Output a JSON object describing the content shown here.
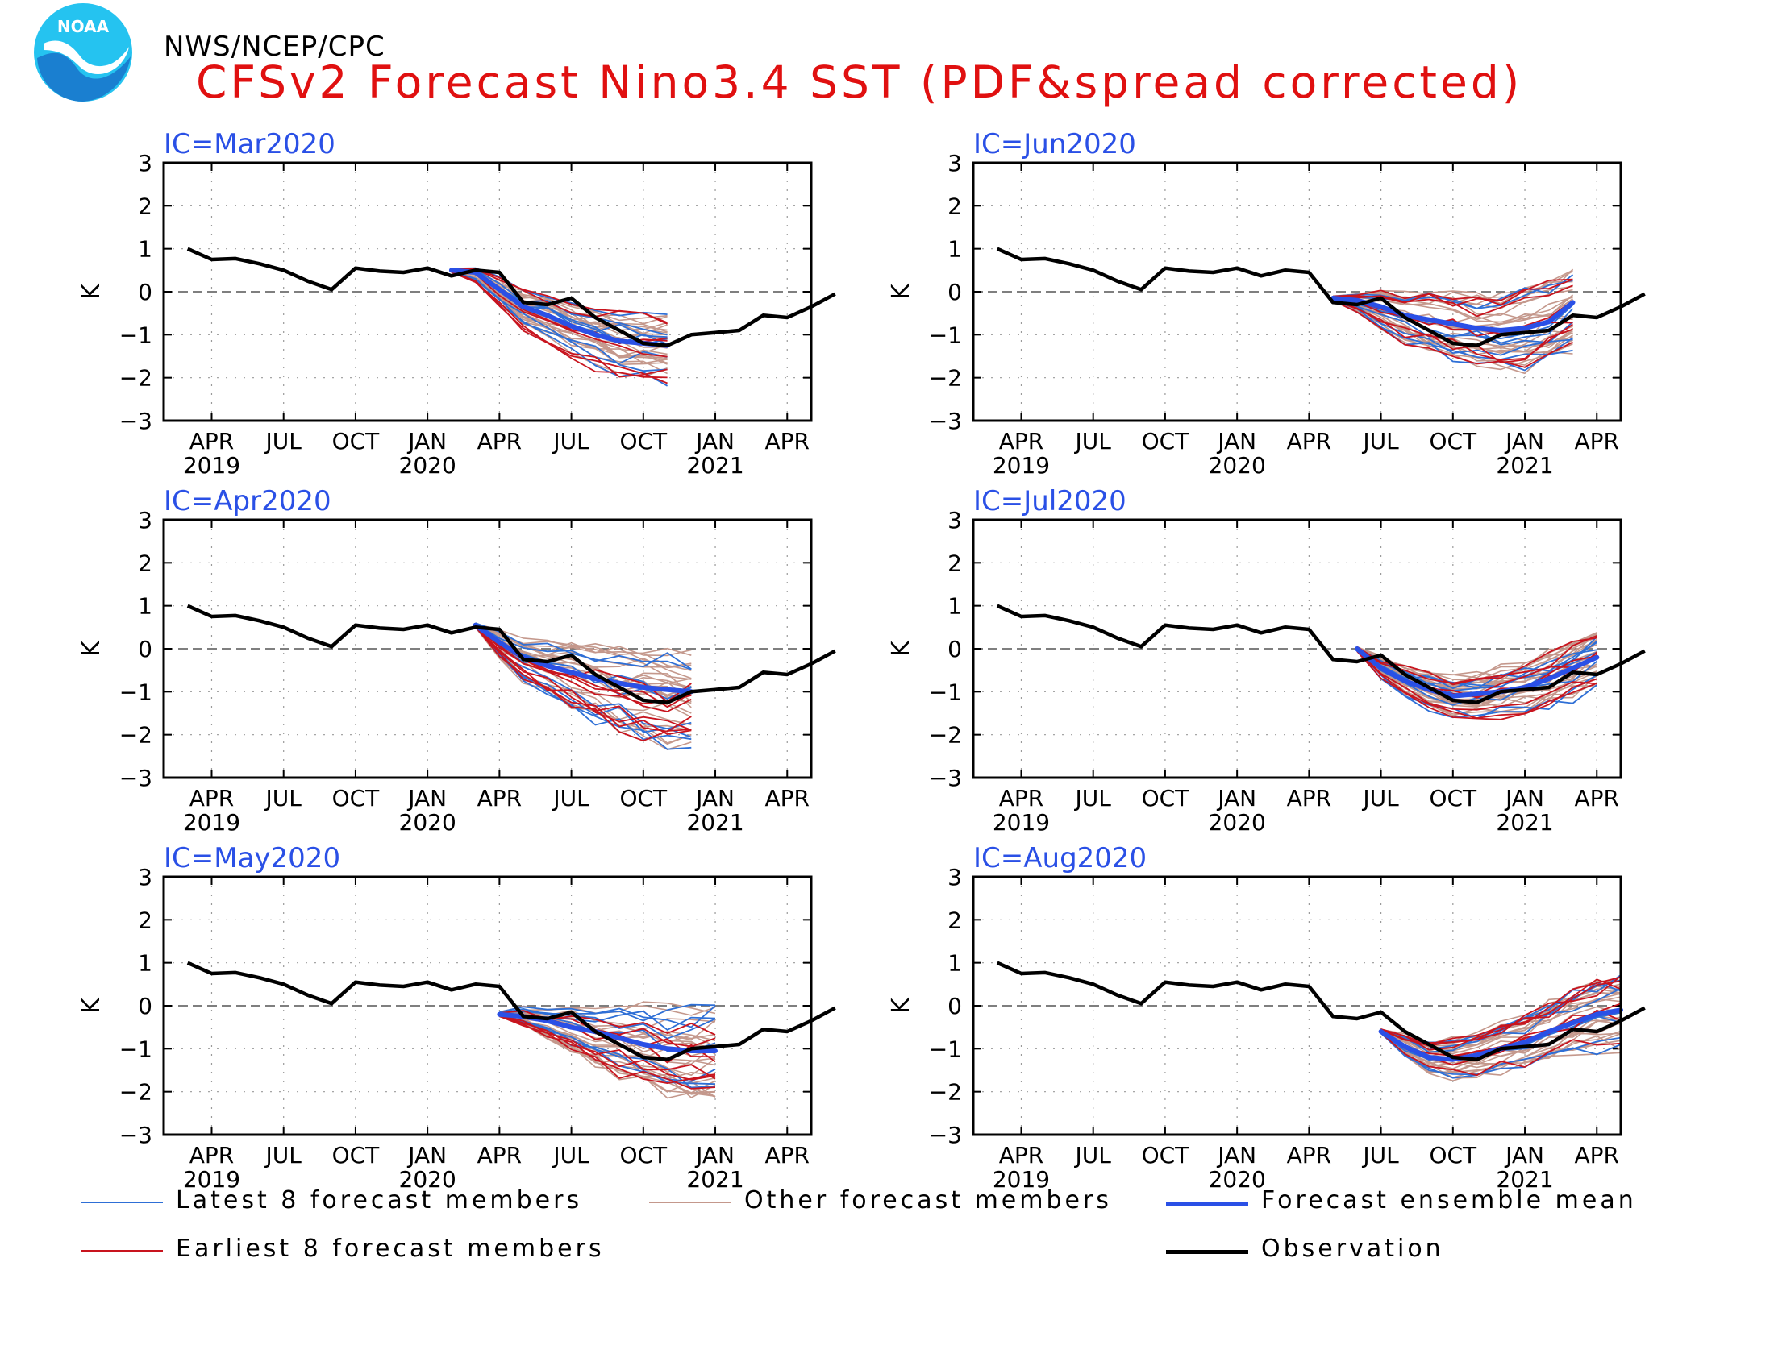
{
  "header": {
    "org": "NWS/NCEP/CPC",
    "title": "CFSv2 Forecast Nino3.4 SST (PDF&spread corrected)",
    "logo_text": "NOAA"
  },
  "colors": {
    "latest": "#2e6fd6",
    "earliest": "#c8141e",
    "other": "#c4988c",
    "mean": "#2a50e6",
    "observation": "#000000",
    "title": "#e01010",
    "panel_title": "#2a50e6"
  },
  "legend": [
    {
      "key": "latest",
      "label": "Latest 8 forecast members"
    },
    {
      "key": "other",
      "label": "Other forecast members"
    },
    {
      "key": "mean",
      "label": "Forecast ensemble mean"
    },
    {
      "key": "earliest",
      "label": "Earliest 8 forecast members"
    },
    {
      "key": "observation",
      "label": "Observation"
    }
  ],
  "chart_data": [
    {
      "type": "line",
      "title": "IC=Mar2020",
      "ylabel": "K",
      "ylim": [
        -3,
        3
      ],
      "yticks": [
        "3",
        "2",
        "1",
        "0",
        "−1",
        "−2",
        "−3"
      ],
      "xticks": [
        {
          "month": "APR",
          "year": "2019"
        },
        {
          "month": "JUL",
          "year": ""
        },
        {
          "month": "OCT",
          "year": ""
        },
        {
          "month": "JAN",
          "year": "2020"
        },
        {
          "month": "APR",
          "year": ""
        },
        {
          "month": "JUL",
          "year": ""
        },
        {
          "month": "OCT",
          "year": ""
        },
        {
          "month": "JAN",
          "year": "2021"
        },
        {
          "month": "APR",
          "year": ""
        }
      ],
      "ic_month": "2020-03",
      "observation": {
        "x_start": "2019-03",
        "y": [
          1.0,
          0.75,
          0.77,
          0.65,
          0.5,
          0.25,
          0.05,
          0.55,
          0.48,
          0.45,
          0.55,
          0.37,
          0.5,
          0.45,
          -0.25,
          -0.3,
          -0.15,
          -0.6,
          -0.9,
          -1.2,
          -1.25,
          -1.0,
          -0.95,
          -0.9,
          -0.55,
          -0.6,
          -0.35,
          -0.05
        ]
      },
      "mean": {
        "x_start": "2020-02",
        "y": [
          0.5,
          0.45,
          0.05,
          -0.35,
          -0.55,
          -0.8,
          -1.0,
          -1.15,
          -1.2,
          -1.25
        ]
      },
      "spread": {
        "x_start": "2020-02",
        "center": [
          0.5,
          0.4,
          0.0,
          -0.4,
          -0.6,
          -0.85,
          -1.05,
          -1.2,
          -1.25,
          -1.3
        ],
        "width": [
          0.05,
          0.18,
          0.32,
          0.45,
          0.55,
          0.62,
          0.7,
          0.75,
          0.8,
          0.8
        ]
      }
    },
    {
      "type": "line",
      "title": "IC=Jun2020",
      "ylabel": "K",
      "ylim": [
        -3,
        3
      ],
      "yticks": [
        "3",
        "2",
        "1",
        "0",
        "−1",
        "−2",
        "−3"
      ],
      "xticks": [
        {
          "month": "APR",
          "year": "2019"
        },
        {
          "month": "JUL",
          "year": ""
        },
        {
          "month": "OCT",
          "year": ""
        },
        {
          "month": "JAN",
          "year": "2020"
        },
        {
          "month": "APR",
          "year": ""
        },
        {
          "month": "JUL",
          "year": ""
        },
        {
          "month": "OCT",
          "year": ""
        },
        {
          "month": "JAN",
          "year": "2021"
        },
        {
          "month": "APR",
          "year": ""
        }
      ],
      "ic_month": "2020-06",
      "observation": {
        "x_start": "2019-03",
        "y": [
          1.0,
          0.75,
          0.77,
          0.65,
          0.5,
          0.25,
          0.05,
          0.55,
          0.48,
          0.45,
          0.55,
          0.37,
          0.5,
          0.45,
          -0.25,
          -0.3,
          -0.15,
          -0.6,
          -0.9,
          -1.2,
          -1.25,
          -1.0,
          -0.95,
          -0.9,
          -0.55,
          -0.6,
          -0.35,
          -0.05
        ]
      },
      "mean": {
        "x_start": "2020-05",
        "y": [
          -0.15,
          -0.2,
          -0.35,
          -0.55,
          -0.65,
          -0.75,
          -0.85,
          -0.9,
          -0.85,
          -0.7,
          -0.25
        ]
      },
      "spread": {
        "x_start": "2020-05",
        "center": [
          -0.15,
          -0.25,
          -0.4,
          -0.6,
          -0.7,
          -0.8,
          -0.9,
          -0.95,
          -0.85,
          -0.7,
          -0.4
        ],
        "width": [
          0.05,
          0.2,
          0.4,
          0.55,
          0.65,
          0.7,
          0.75,
          0.8,
          0.85,
          0.85,
          0.85
        ]
      }
    },
    {
      "type": "line",
      "title": "IC=Apr2020",
      "ylabel": "K",
      "ylim": [
        -3,
        3
      ],
      "yticks": [
        "3",
        "2",
        "1",
        "0",
        "−1",
        "−2",
        "−3"
      ],
      "xticks": [
        {
          "month": "APR",
          "year": "2019"
        },
        {
          "month": "JUL",
          "year": ""
        },
        {
          "month": "OCT",
          "year": ""
        },
        {
          "month": "JAN",
          "year": "2020"
        },
        {
          "month": "APR",
          "year": ""
        },
        {
          "month": "JUL",
          "year": ""
        },
        {
          "month": "OCT",
          "year": ""
        },
        {
          "month": "JAN",
          "year": "2021"
        },
        {
          "month": "APR",
          "year": ""
        }
      ],
      "ic_month": "2020-04",
      "observation": {
        "x_start": "2019-03",
        "y": [
          1.0,
          0.75,
          0.77,
          0.65,
          0.5,
          0.25,
          0.05,
          0.55,
          0.48,
          0.45,
          0.55,
          0.37,
          0.5,
          0.45,
          -0.25,
          -0.3,
          -0.15,
          -0.6,
          -0.9,
          -1.2,
          -1.25,
          -1.0,
          -0.95,
          -0.9,
          -0.55,
          -0.6,
          -0.35,
          -0.05
        ]
      },
      "mean": {
        "x_start": "2020-03",
        "y": [
          0.55,
          0.15,
          -0.2,
          -0.4,
          -0.55,
          -0.7,
          -0.8,
          -0.9,
          -0.95,
          -1.0
        ]
      },
      "spread": {
        "x_start": "2020-03",
        "center": [
          0.55,
          0.1,
          -0.25,
          -0.45,
          -0.6,
          -0.75,
          -0.9,
          -1.0,
          -1.1,
          -1.15
        ],
        "width": [
          0.05,
          0.3,
          0.45,
          0.6,
          0.75,
          0.85,
          0.95,
          1.0,
          1.05,
          1.05
        ]
      }
    },
    {
      "type": "line",
      "title": "IC=Jul2020",
      "ylabel": "K",
      "ylim": [
        -3,
        3
      ],
      "yticks": [
        "3",
        "2",
        "1",
        "0",
        "−1",
        "−2",
        "−3"
      ],
      "xticks": [
        {
          "month": "APR",
          "year": "2019"
        },
        {
          "month": "JUL",
          "year": ""
        },
        {
          "month": "OCT",
          "year": ""
        },
        {
          "month": "JAN",
          "year": "2020"
        },
        {
          "month": "APR",
          "year": ""
        },
        {
          "month": "JUL",
          "year": ""
        },
        {
          "month": "OCT",
          "year": ""
        },
        {
          "month": "JAN",
          "year": "2021"
        },
        {
          "month": "APR",
          "year": ""
        }
      ],
      "ic_month": "2020-07",
      "observation": {
        "x_start": "2019-03",
        "y": [
          1.0,
          0.75,
          0.77,
          0.65,
          0.5,
          0.25,
          0.05,
          0.55,
          0.48,
          0.45,
          0.55,
          0.37,
          0.5,
          0.45,
          -0.25,
          -0.3,
          -0.15,
          -0.6,
          -0.9,
          -1.2,
          -1.25,
          -1.0,
          -0.95,
          -0.9,
          -0.55,
          -0.6,
          -0.35,
          -0.05
        ]
      },
      "mean": {
        "x_start": "2020-06",
        "y": [
          0.0,
          -0.45,
          -0.75,
          -0.95,
          -1.1,
          -1.05,
          -1.0,
          -0.9,
          -0.7,
          -0.45,
          -0.2
        ]
      },
      "spread": {
        "x_start": "2020-06",
        "center": [
          0.0,
          -0.45,
          -0.75,
          -0.95,
          -1.1,
          -1.1,
          -1.0,
          -0.9,
          -0.7,
          -0.45,
          -0.2
        ],
        "width": [
          0.05,
          0.25,
          0.35,
          0.45,
          0.5,
          0.55,
          0.6,
          0.65,
          0.7,
          0.75,
          0.75
        ]
      }
    },
    {
      "type": "line",
      "title": "IC=May2020",
      "ylabel": "K",
      "ylim": [
        -3,
        3
      ],
      "yticks": [
        "3",
        "2",
        "1",
        "0",
        "−1",
        "−2",
        "−3"
      ],
      "xticks": [
        {
          "month": "APR",
          "year": "2019"
        },
        {
          "month": "JUL",
          "year": ""
        },
        {
          "month": "OCT",
          "year": ""
        },
        {
          "month": "JAN",
          "year": "2020"
        },
        {
          "month": "APR",
          "year": ""
        },
        {
          "month": "JUL",
          "year": ""
        },
        {
          "month": "OCT",
          "year": ""
        },
        {
          "month": "JAN",
          "year": "2021"
        },
        {
          "month": "APR",
          "year": ""
        }
      ],
      "ic_month": "2020-05",
      "observation": {
        "x_start": "2019-03",
        "y": [
          1.0,
          0.75,
          0.77,
          0.65,
          0.5,
          0.25,
          0.05,
          0.55,
          0.48,
          0.45,
          0.55,
          0.37,
          0.5,
          0.45,
          -0.25,
          -0.3,
          -0.15,
          -0.6,
          -0.9,
          -1.2,
          -1.25,
          -1.0,
          -0.95,
          -0.9,
          -0.55,
          -0.6,
          -0.35,
          -0.05
        ]
      },
      "mean": {
        "x_start": "2020-04",
        "y": [
          -0.2,
          -0.25,
          -0.35,
          -0.5,
          -0.6,
          -0.75,
          -0.9,
          -1.0,
          -1.05,
          -1.05
        ]
      },
      "spread": {
        "x_start": "2020-04",
        "center": [
          -0.2,
          -0.25,
          -0.4,
          -0.55,
          -0.7,
          -0.85,
          -0.95,
          -1.05,
          -1.1,
          -1.05
        ],
        "width": [
          0.05,
          0.2,
          0.35,
          0.5,
          0.65,
          0.75,
          0.85,
          0.95,
          1.0,
          1.0
        ]
      }
    },
    {
      "type": "line",
      "title": "IC=Aug2020",
      "ylabel": "K",
      "ylim": [
        -3,
        3
      ],
      "yticks": [
        "3",
        "2",
        "1",
        "0",
        "−1",
        "−2",
        "−3"
      ],
      "xticks": [
        {
          "month": "APR",
          "year": "2019"
        },
        {
          "month": "JUL",
          "year": ""
        },
        {
          "month": "OCT",
          "year": ""
        },
        {
          "month": "JAN",
          "year": "2020"
        },
        {
          "month": "APR",
          "year": ""
        },
        {
          "month": "JUL",
          "year": ""
        },
        {
          "month": "OCT",
          "year": ""
        },
        {
          "month": "JAN",
          "year": "2021"
        },
        {
          "month": "APR",
          "year": ""
        }
      ],
      "ic_month": "2020-08",
      "observation": {
        "x_start": "2019-03",
        "y": [
          1.0,
          0.75,
          0.77,
          0.65,
          0.5,
          0.25,
          0.05,
          0.55,
          0.48,
          0.45,
          0.55,
          0.37,
          0.5,
          0.45,
          -0.25,
          -0.3,
          -0.15,
          -0.6,
          -0.9,
          -1.2,
          -1.25,
          -1.0,
          -0.95,
          -0.9,
          -0.55,
          -0.6,
          -0.35,
          -0.05
        ]
      },
      "mean": {
        "x_start": "2020-07",
        "y": [
          -0.6,
          -0.95,
          -1.2,
          -1.25,
          -1.15,
          -1.0,
          -0.85,
          -0.6,
          -0.4,
          -0.2,
          -0.1
        ]
      },
      "spread": {
        "x_start": "2020-07",
        "center": [
          -0.6,
          -0.95,
          -1.2,
          -1.25,
          -1.15,
          -1.0,
          -0.85,
          -0.6,
          -0.4,
          -0.25,
          -0.15
        ],
        "width": [
          0.05,
          0.25,
          0.35,
          0.45,
          0.5,
          0.55,
          0.6,
          0.65,
          0.7,
          0.75,
          0.8
        ]
      }
    }
  ]
}
